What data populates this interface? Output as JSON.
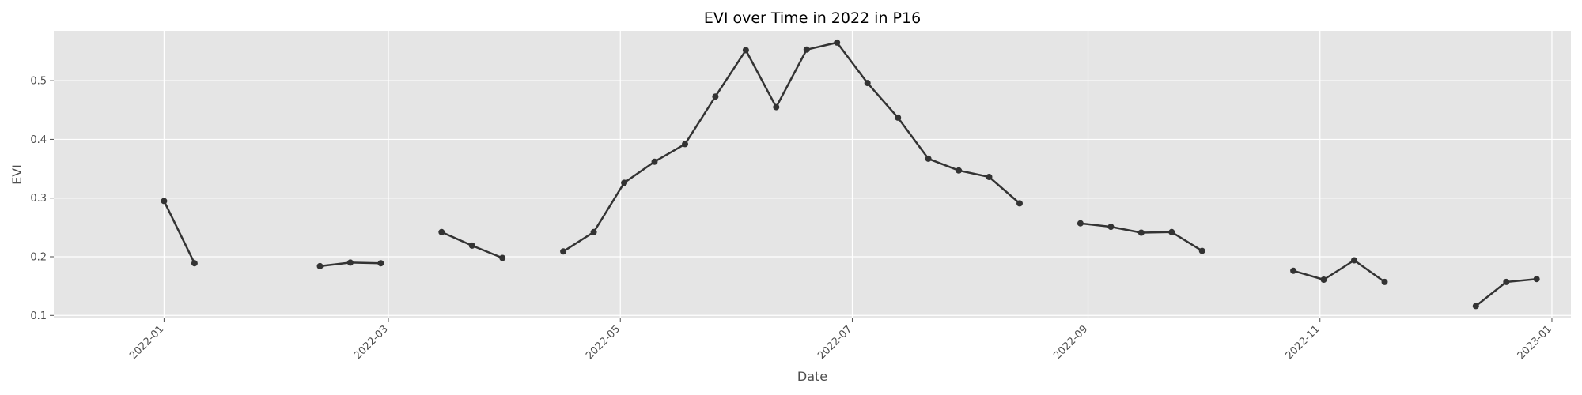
{
  "colors": {
    "plot_background": "#e5e5e5",
    "grid": "#ffffff",
    "line": "#333333",
    "page_background": "#ffffff"
  },
  "chart_data": {
    "type": "line",
    "title": "EVI over Time in 2022 in P16",
    "xlabel": "Date",
    "ylabel": "EVI",
    "xlim": [
      "2021-12-03",
      "2023-01-06"
    ],
    "ylim": [
      0.095,
      0.585
    ],
    "grid": true,
    "x_ticks": [
      "2022-01",
      "2022-03",
      "2022-05",
      "2022-07",
      "2022-09",
      "2022-11",
      "2023-01"
    ],
    "y_ticks": [
      "0.1",
      "0.2",
      "0.3",
      "0.4",
      "0.5"
    ],
    "series": [
      {
        "x": [
          "2022-01-01",
          "2022-01-09",
          null,
          "2022-02-11",
          "2022-02-19",
          "2022-02-27",
          null,
          "2022-03-15",
          "2022-03-23",
          "2022-03-31",
          null,
          "2022-04-16",
          "2022-04-24",
          "2022-05-02",
          "2022-05-10",
          "2022-05-18",
          "2022-05-26",
          "2022-06-03",
          "2022-06-11",
          "2022-06-19",
          "2022-06-27",
          "2022-07-05",
          "2022-07-13",
          "2022-07-21",
          "2022-07-29",
          "2022-08-06",
          "2022-08-14",
          null,
          "2022-08-30",
          "2022-09-07",
          "2022-09-15",
          "2022-09-23",
          "2022-10-01",
          null,
          "2022-10-25",
          "2022-11-02",
          "2022-11-10",
          "2022-11-18",
          null,
          "2022-12-12",
          "2022-12-20",
          "2022-12-28"
        ],
        "values": [
          0.295,
          0.189,
          null,
          0.184,
          0.19,
          0.189,
          null,
          0.242,
          0.219,
          0.198,
          null,
          0.209,
          0.242,
          0.326,
          0.362,
          0.392,
          0.473,
          0.552,
          0.455,
          0.553,
          0.565,
          0.496,
          0.437,
          0.367,
          0.347,
          0.336,
          0.291,
          null,
          0.257,
          0.251,
          0.241,
          0.242,
          0.21,
          null,
          0.176,
          0.161,
          0.194,
          0.157,
          null,
          0.116,
          0.157,
          0.162
        ]
      }
    ]
  }
}
